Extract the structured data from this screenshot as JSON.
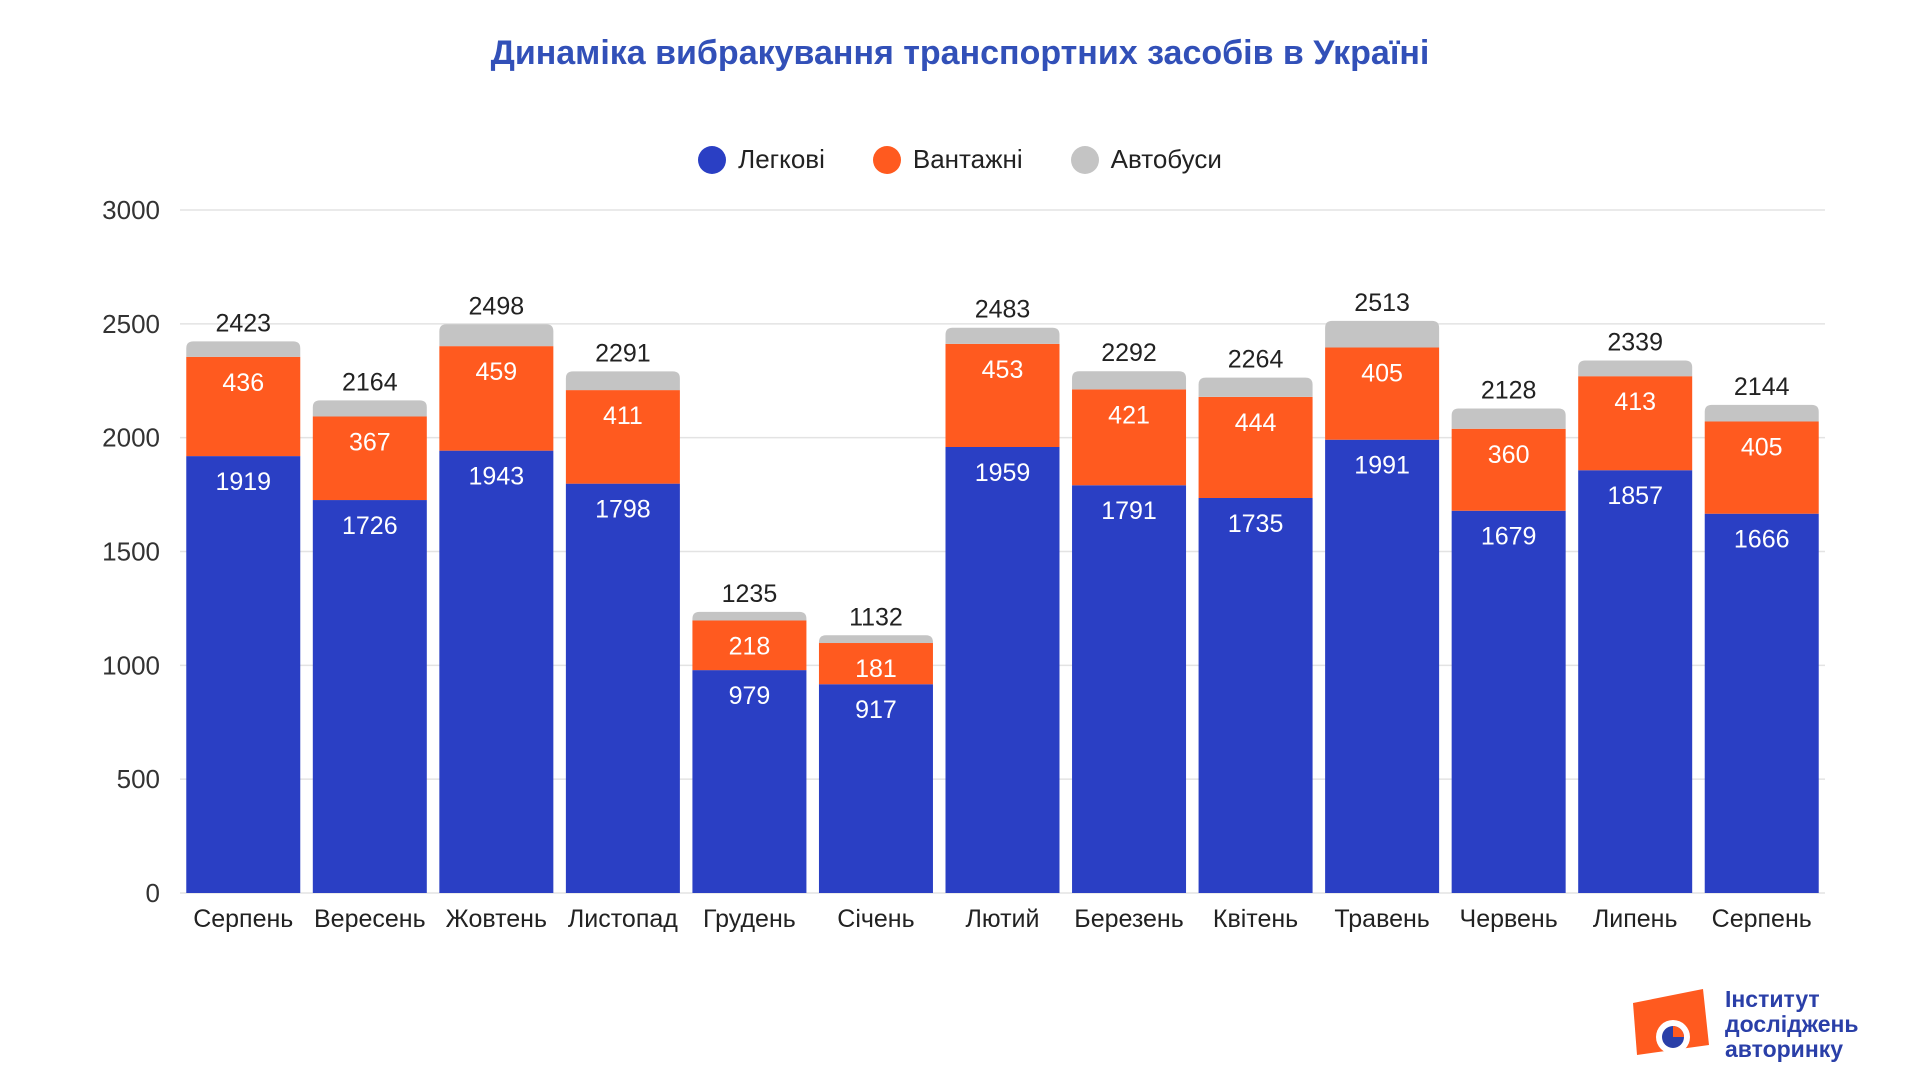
{
  "chart_data": {
    "type": "bar",
    "stacked": true,
    "title": "Динаміка вибракування транспортних засобів в Україні",
    "categories": [
      "Серпень",
      "Вересень",
      "Жовтень",
      "Листопад",
      "Грудень",
      "Січень",
      "Лютий",
      "Березень",
      "Квітень",
      "Травень",
      "Червень",
      "Липень",
      "Серпень"
    ],
    "series": [
      {
        "name": "Легкові",
        "color": "#2a3fc4",
        "values": [
          1919,
          1726,
          1943,
          1798,
          979,
          917,
          1959,
          1791,
          1735,
          1991,
          1679,
          1857,
          1666
        ]
      },
      {
        "name": "Вантажні",
        "color": "#ff5a1f",
        "values": [
          436,
          367,
          459,
          411,
          218,
          181,
          453,
          421,
          444,
          405,
          360,
          413,
          405
        ]
      },
      {
        "name": "Автобуси",
        "color": "#c4c4c4",
        "values": [
          68,
          71,
          96,
          82,
          38,
          34,
          71,
          80,
          85,
          117,
          89,
          69,
          73
        ]
      }
    ],
    "totals": [
      2423,
      2164,
      2498,
      2291,
      1235,
      1132,
      2483,
      2292,
      2264,
      2513,
      2128,
      2339,
      2144
    ],
    "ylim": [
      0,
      3000
    ],
    "yticks": [
      0,
      500,
      1000,
      1500,
      2000,
      2500,
      3000
    ],
    "grid": true,
    "legend_position": "top"
  },
  "logo": {
    "line1": "Інститут",
    "line2": "досліджень",
    "line3": "авторинку"
  },
  "colors": {
    "title": "#3250b8",
    "brand_orange": "#ff5a1f",
    "brand_blue": "#2a3fa8"
  }
}
